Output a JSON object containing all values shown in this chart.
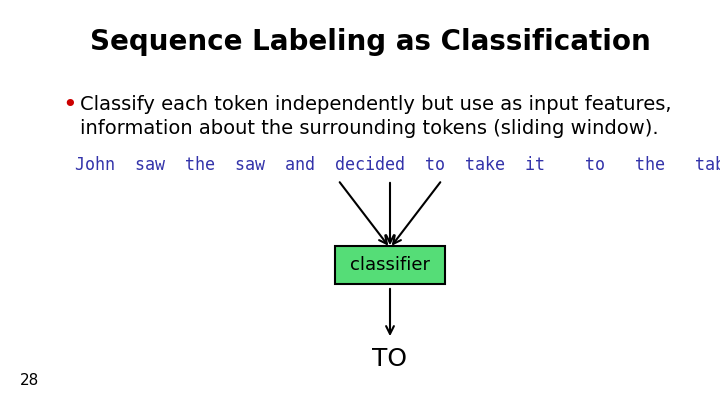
{
  "title": "Sequence Labeling as Classification",
  "title_fontsize": 20,
  "title_fontweight": "bold",
  "title_color": "#000000",
  "bullet_text_line1": "Classify each token independently but use as input features,",
  "bullet_text_line2": "information about the surrounding tokens (sliding window).",
  "bullet_color": "#cc0000",
  "body_fontsize": 14,
  "sentence": "John  saw  the  saw  and  decided  to  take  it    to   the   table.",
  "sentence_color": "#3333aa",
  "sentence_fontsize": 12,
  "classifier_label": "classifier",
  "classifier_box_color": "#55dd77",
  "classifier_box_edgecolor": "#000000",
  "output_label": "TO",
  "output_fontsize": 18,
  "page_number": "28",
  "left_bar_color": "#aa0000",
  "background_color": "#ffffff"
}
